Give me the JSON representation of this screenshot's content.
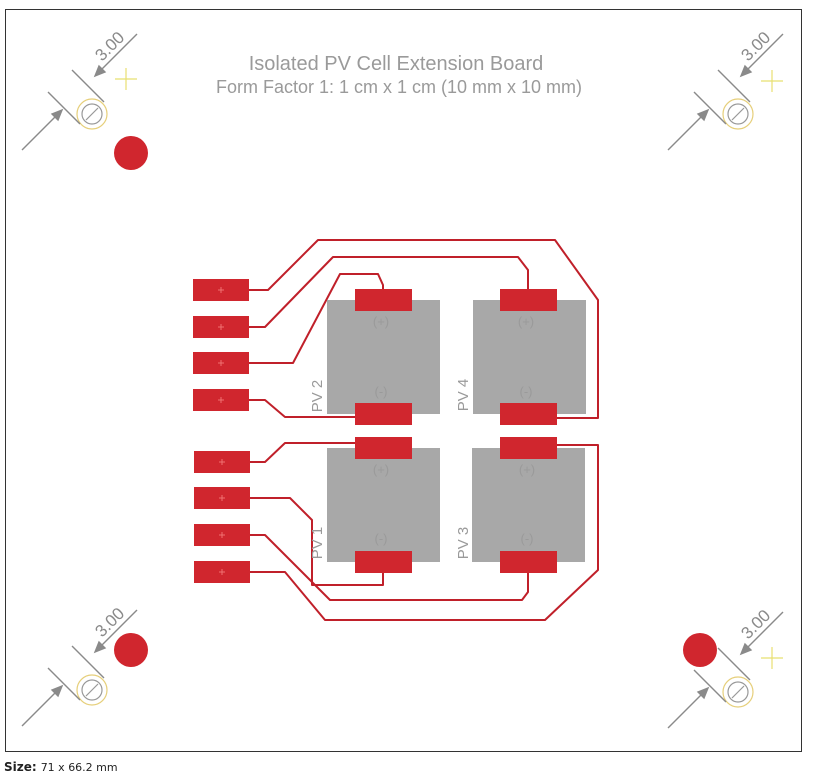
{
  "board": {
    "title": "Isolated PV Cell Extension Board",
    "subtitle": "Form Factor 1: 1 cm x 1 cm (10 mm x 10 mm)"
  },
  "mounting_holes": {
    "dimension_label": "3.00"
  },
  "cells": [
    {
      "designator": "PV 2",
      "plus_label": "(+)",
      "minus_label": "(-)"
    },
    {
      "designator": "PV 4",
      "plus_label": "(+)",
      "minus_label": "(-)"
    },
    {
      "designator": "PV 1",
      "plus_label": "(+)",
      "minus_label": "(-)"
    },
    {
      "designator": "PV 3",
      "plus_label": "(+)",
      "minus_label": "(-)"
    }
  ],
  "footer": {
    "size_label": "Size:",
    "size_value": "71 x 66.2 mm"
  },
  "colors": {
    "copper": "#d0262e",
    "trace": "#c0202a",
    "cell_body": "#a8a8a8",
    "silkscreen": "#9a9a9a",
    "hole_ring": "#e6cf7a",
    "origin_cross": "#e8e070",
    "dimension": "#8a8a8a"
  }
}
